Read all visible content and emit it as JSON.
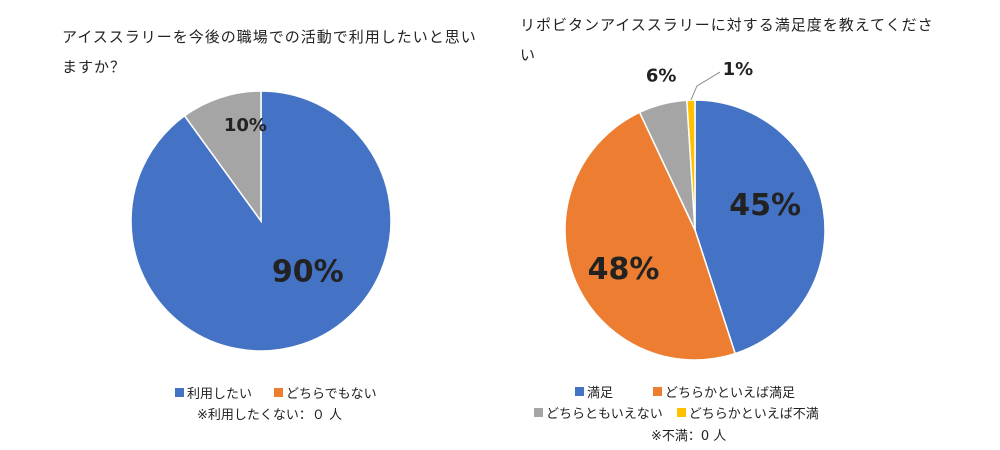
{
  "chart_data": [
    {
      "type": "pie",
      "title": "アイススラリーを今後の職場での活動で利用したいと思いますか？",
      "slices": [
        {
          "label": "利用したい",
          "value": 90,
          "display": "90%",
          "color": "#4472C4"
        },
        {
          "label": "どちらでもない",
          "value": 10,
          "display": "10%",
          "color": "#A5A5A5"
        }
      ],
      "legend": [
        {
          "label": "利用したい",
          "color": "#4472C4"
        },
        {
          "label": "どちらでもない",
          "color": "#ED7D31"
        }
      ],
      "note": "※利用したくない：０ 人"
    },
    {
      "type": "pie",
      "title": "リポビタンアイススラリーに対する満足度を教えてください",
      "slices": [
        {
          "label": "満足",
          "value": 45,
          "display": "45%",
          "color": "#4472C4"
        },
        {
          "label": "どちらかといえば満足",
          "value": 48,
          "display": "48%",
          "color": "#ED7D31"
        },
        {
          "label": "どちらともいえない",
          "value": 6,
          "display": "6%",
          "color": "#A5A5A5"
        },
        {
          "label": "どちらかといえば不満",
          "value": 1,
          "display": "1%",
          "color": "#FFC000"
        }
      ],
      "legend": [
        {
          "label": "満足",
          "color": "#4472C4"
        },
        {
          "label": "どちらかといえば満足",
          "color": "#ED7D31"
        },
        {
          "label": "どちらともいえない",
          "color": "#A5A5A5"
        },
        {
          "label": "どちらかといえば不満",
          "color": "#FFC000"
        }
      ],
      "note": "※不満：0 人"
    }
  ]
}
